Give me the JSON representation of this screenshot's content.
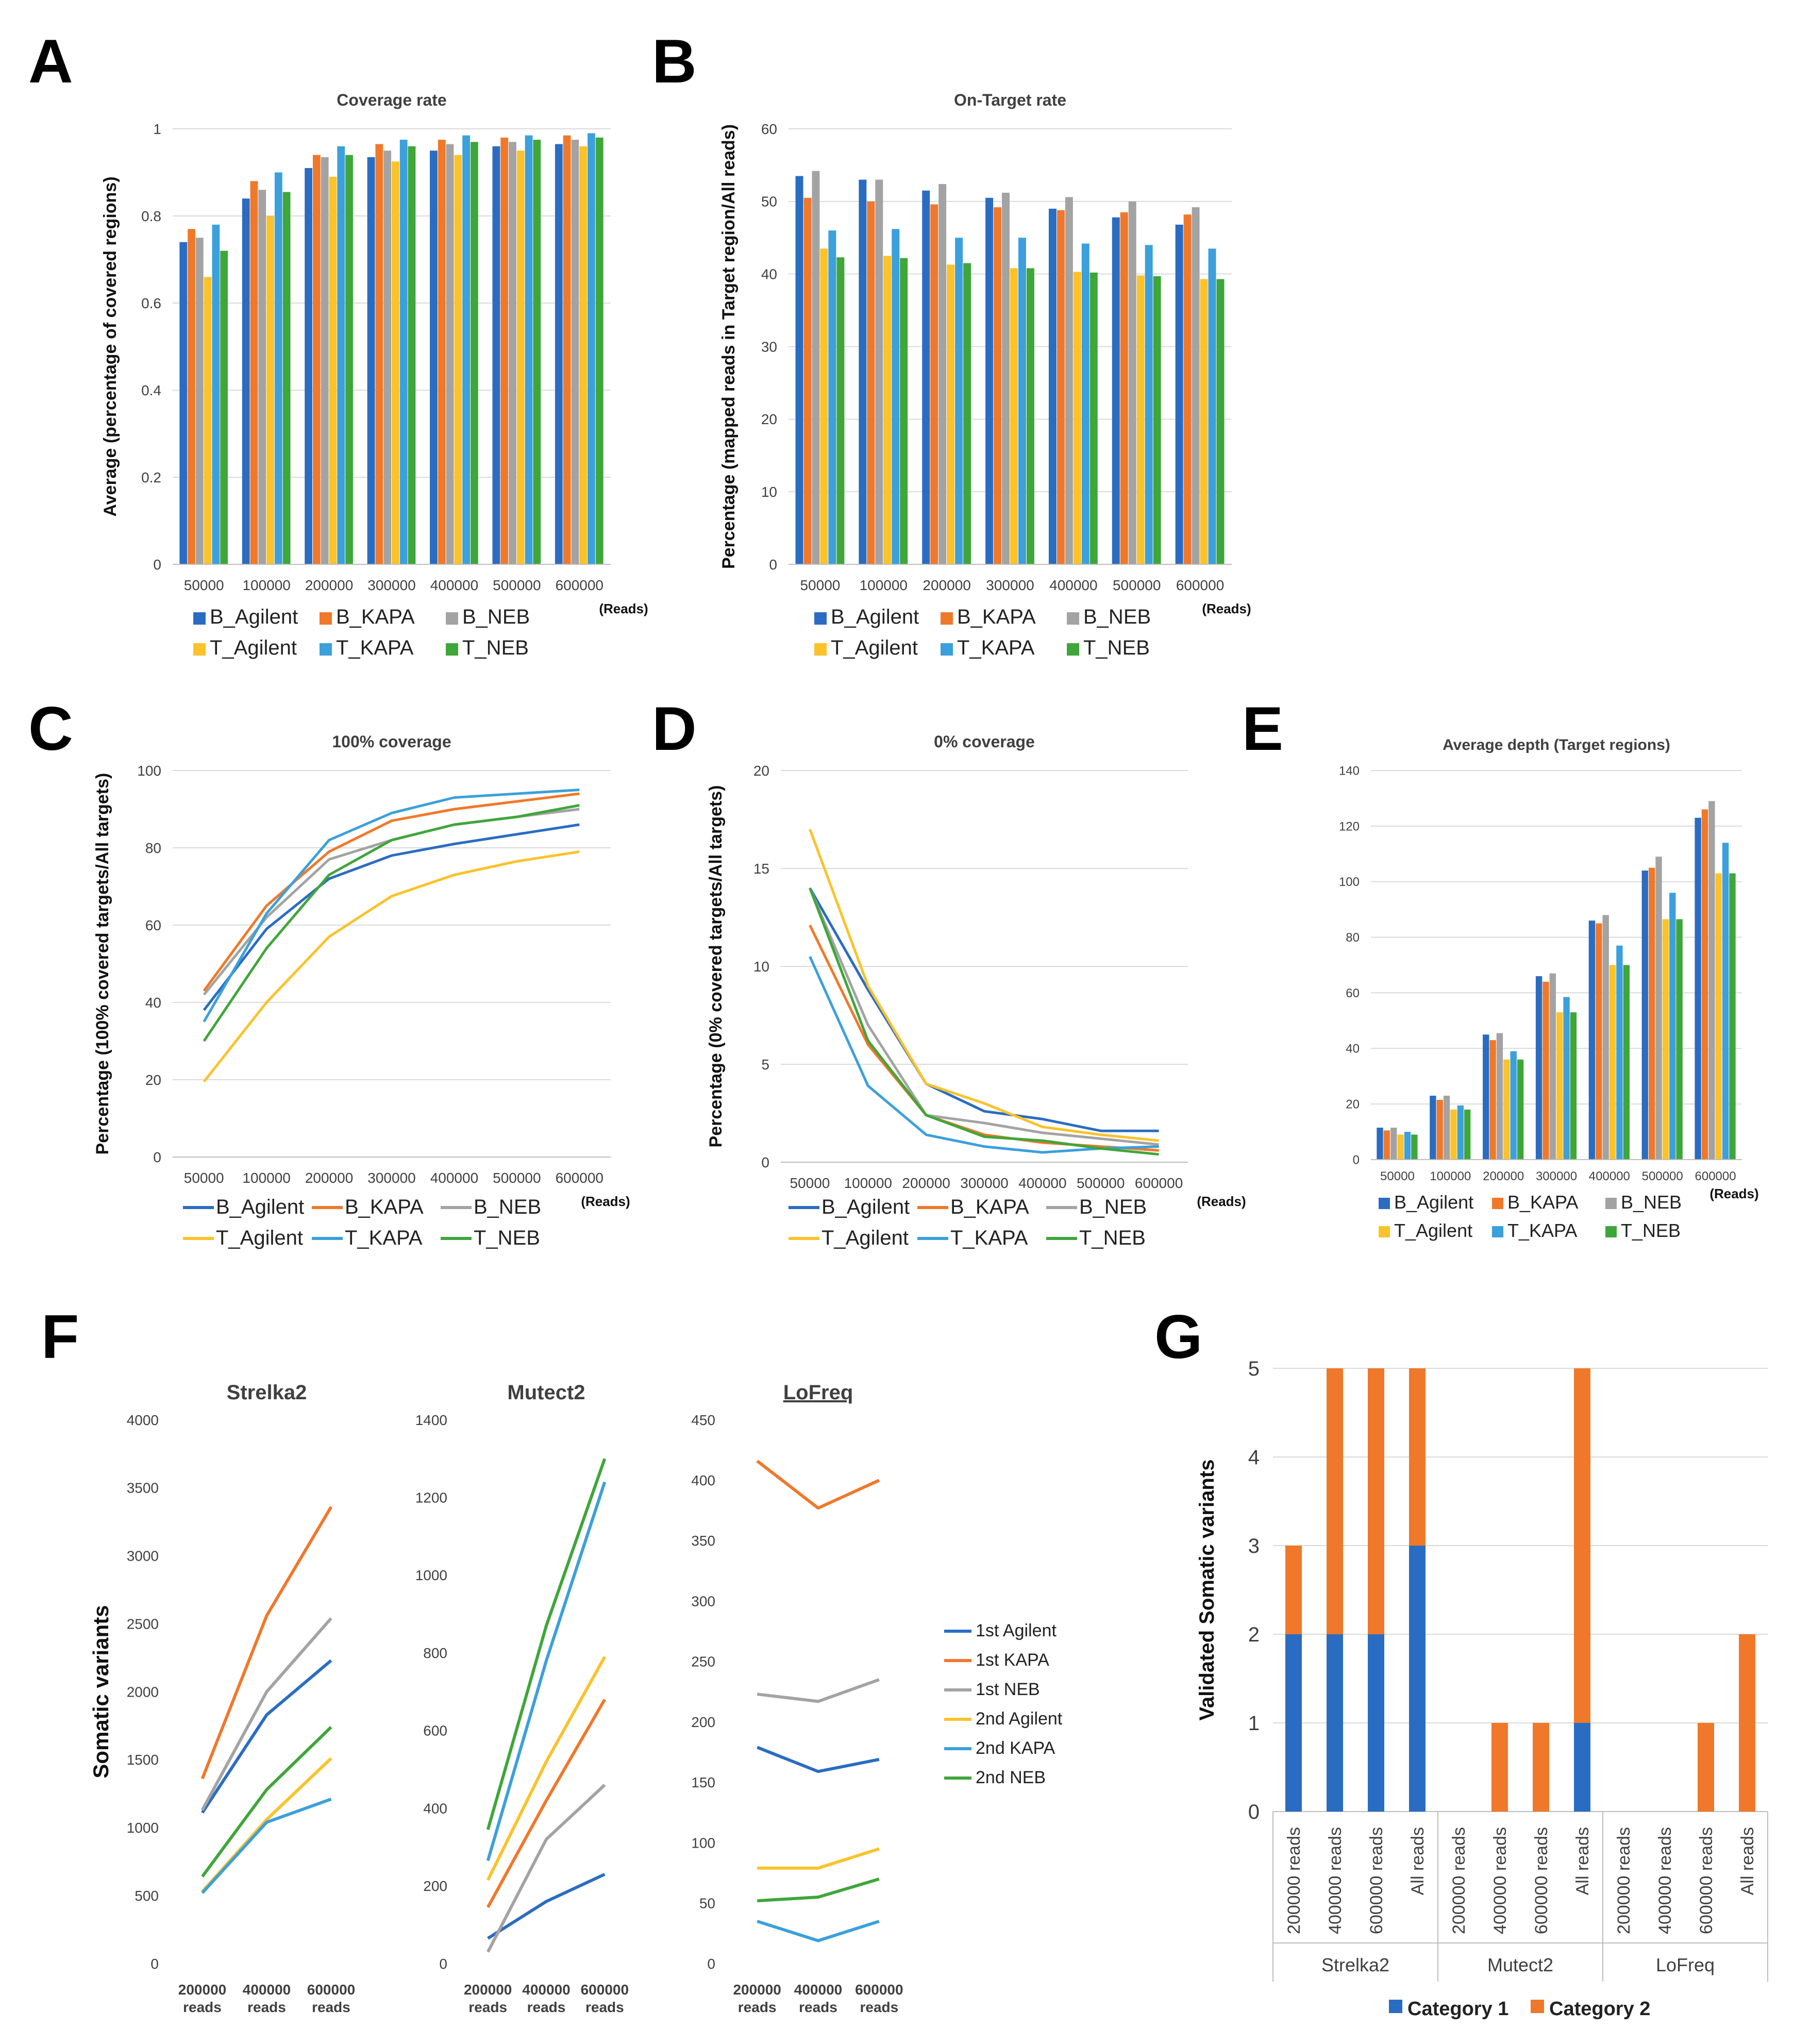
{
  "figure": {
    "panel_letters": [
      "A",
      "B",
      "C",
      "D",
      "E",
      "F",
      "G"
    ]
  },
  "colors": {
    "B_Agilent": "#2A6CC2",
    "B_KAPA": "#F0782A",
    "B_NEB": "#A3A3A3",
    "T_Agilent": "#FBC22A",
    "T_KAPA": "#3BA0DB",
    "T_NEB": "#3FA63A",
    "1st Agilent": "#2A6CC2",
    "1st KAPA": "#F0782A",
    "1st NEB": "#A3A3A3",
    "2nd Agilent": "#FBC22A",
    "2nd KAPA": "#3BA0DB",
    "2nd NEB": "#3FA63A",
    "Category 1": "#2A6CC2",
    "Category 2": "#F0782A",
    "grid": "#DADADA",
    "axis_text": "#404040"
  },
  "chart_data": [
    {
      "id": "A",
      "type": "bar",
      "title": "Coverage rate",
      "ylabel": "Average (percentage of covered regions)",
      "xunit": "(Reads)",
      "categories": [
        "50000",
        "100000",
        "200000",
        "300000",
        "400000",
        "500000",
        "600000"
      ],
      "ylim": [
        0,
        1
      ],
      "yticks": [
        "0",
        "0.2",
        "0.4",
        "0.6",
        "0.8",
        "1"
      ],
      "ytick_values": [
        0,
        0.2,
        0.4,
        0.6,
        0.8,
        1
      ],
      "grid": true,
      "legend": [
        "B_Agilent",
        "B_KAPA",
        "B_NEB",
        "T_Agilent",
        "T_KAPA",
        "T_NEB"
      ],
      "series": [
        {
          "name": "B_Agilent",
          "values": [
            0.74,
            0.84,
            0.91,
            0.935,
            0.95,
            0.96,
            0.965
          ]
        },
        {
          "name": "B_KAPA",
          "values": [
            0.77,
            0.88,
            0.94,
            0.965,
            0.975,
            0.98,
            0.985
          ]
        },
        {
          "name": "B_NEB",
          "values": [
            0.75,
            0.86,
            0.935,
            0.95,
            0.965,
            0.97,
            0.975
          ]
        },
        {
          "name": "T_Agilent",
          "values": [
            0.66,
            0.8,
            0.89,
            0.925,
            0.94,
            0.95,
            0.96
          ]
        },
        {
          "name": "T_KAPA",
          "values": [
            0.78,
            0.9,
            0.96,
            0.975,
            0.985,
            0.985,
            0.99
          ]
        },
        {
          "name": "T_NEB",
          "values": [
            0.72,
            0.855,
            0.94,
            0.96,
            0.97,
            0.975,
            0.98
          ]
        }
      ]
    },
    {
      "id": "B",
      "type": "bar",
      "title": "On-Target rate",
      "ylabel": "Percentage (mapped reads in Target region/All reads)",
      "xunit": "(Reads)",
      "categories": [
        "50000",
        "100000",
        "200000",
        "300000",
        "400000",
        "500000",
        "600000"
      ],
      "ylim": [
        0,
        60
      ],
      "yticks": [
        "0",
        "10",
        "20",
        "30",
        "40",
        "50",
        "60"
      ],
      "ytick_values": [
        0,
        10,
        20,
        30,
        40,
        50,
        60
      ],
      "grid": true,
      "legend": [
        "B_Agilent",
        "B_KAPA",
        "B_NEB",
        "T_Agilent",
        "T_KAPA",
        "T_NEB"
      ],
      "series": [
        {
          "name": "B_Agilent",
          "values": [
            53.5,
            53,
            51.5,
            50.5,
            49,
            47.8,
            46.8
          ]
        },
        {
          "name": "B_KAPA",
          "values": [
            50.5,
            50,
            49.6,
            49.2,
            48.8,
            48.5,
            48.2
          ]
        },
        {
          "name": "B_NEB",
          "values": [
            54.2,
            53,
            52.4,
            51.2,
            50.6,
            50,
            49.2
          ]
        },
        {
          "name": "T_Agilent",
          "values": [
            43.5,
            42.5,
            41.3,
            40.8,
            40.3,
            39.8,
            39.3
          ]
        },
        {
          "name": "T_KAPA",
          "values": [
            46,
            46.2,
            45,
            45,
            44.2,
            44,
            43.5
          ]
        },
        {
          "name": "T_NEB",
          "values": [
            42.3,
            42.2,
            41.5,
            40.8,
            40.2,
            39.7,
            39.3
          ]
        }
      ]
    },
    {
      "id": "C",
      "type": "line",
      "title": "100% coverage",
      "ylabel": "Percentage (100% covered targets/All targets)",
      "xunit": "(Reads)",
      "categories": [
        "50000",
        "100000",
        "200000",
        "300000",
        "400000",
        "500000",
        "600000"
      ],
      "ylim": [
        0,
        100
      ],
      "yticks": [
        "0",
        "20",
        "40",
        "60",
        "80",
        "100"
      ],
      "ytick_values": [
        0,
        20,
        40,
        60,
        80,
        100
      ],
      "grid": true,
      "legend": [
        "B_Agilent",
        "B_KAPA",
        "B_NEB",
        "T_Agilent",
        "T_KAPA",
        "T_NEB"
      ],
      "series": [
        {
          "name": "B_Agilent",
          "values": [
            38,
            59,
            72,
            78,
            81,
            83.5,
            86
          ]
        },
        {
          "name": "B_KAPA",
          "values": [
            43,
            65,
            79,
            87,
            90,
            92,
            94
          ]
        },
        {
          "name": "B_NEB",
          "values": [
            42,
            62,
            77,
            82,
            86,
            88,
            90
          ]
        },
        {
          "name": "T_Agilent",
          "values": [
            19.5,
            40,
            57,
            67.5,
            73,
            76.5,
            79
          ]
        },
        {
          "name": "T_KAPA",
          "values": [
            35,
            63,
            82,
            89,
            93,
            94,
            95
          ]
        },
        {
          "name": "T_NEB",
          "values": [
            30,
            54,
            73,
            82,
            86,
            88,
            91
          ]
        }
      ]
    },
    {
      "id": "D",
      "type": "line",
      "title": "0% coverage",
      "ylabel": "Percentage (0% covered targets/All targets)",
      "xunit": "(Reads)",
      "categories": [
        "50000",
        "100000",
        "200000",
        "300000",
        "400000",
        "500000",
        "600000"
      ],
      "ylim": [
        0,
        20
      ],
      "yticks": [
        "0",
        "5",
        "10",
        "15",
        "20"
      ],
      "ytick_values": [
        0,
        5,
        10,
        15,
        20
      ],
      "grid": true,
      "legend": [
        "B_Agilent",
        "B_KAPA",
        "B_NEB",
        "T_Agilent",
        "T_KAPA",
        "T_NEB"
      ],
      "series": [
        {
          "name": "B_Agilent",
          "values": [
            14,
            8.8,
            4,
            2.6,
            2.2,
            1.6,
            1.6
          ]
        },
        {
          "name": "B_KAPA",
          "values": [
            12.1,
            6,
            2.4,
            1.4,
            1,
            0.8,
            0.6
          ]
        },
        {
          "name": "B_NEB",
          "values": [
            14,
            7,
            2.4,
            2,
            1.5,
            1.2,
            0.9
          ]
        },
        {
          "name": "T_Agilent",
          "values": [
            17,
            9,
            4,
            3,
            1.8,
            1.4,
            1.1
          ]
        },
        {
          "name": "T_KAPA",
          "values": [
            10.5,
            3.9,
            1.4,
            0.8,
            0.5,
            0.7,
            0.8
          ]
        },
        {
          "name": "T_NEB",
          "values": [
            14,
            6.2,
            2.4,
            1.3,
            1.1,
            0.7,
            0.4
          ]
        }
      ]
    },
    {
      "id": "E",
      "type": "bar",
      "title": "Average depth (Target regions)",
      "ylabel": "",
      "xunit": "(Reads)",
      "categories": [
        "50000",
        "100000",
        "200000",
        "300000",
        "400000",
        "500000",
        "600000"
      ],
      "ylim": [
        0,
        140
      ],
      "yticks": [
        "0",
        "20",
        "40",
        "60",
        "80",
        "100",
        "120",
        "140"
      ],
      "ytick_values": [
        0,
        20,
        40,
        60,
        80,
        100,
        120,
        140
      ],
      "grid": true,
      "legend": [
        "B_Agilent",
        "B_KAPA",
        "B_NEB",
        "T_Agilent",
        "T_KAPA",
        "T_NEB"
      ],
      "series": [
        {
          "name": "B_Agilent",
          "values": [
            11.5,
            23,
            45,
            66,
            86,
            104,
            123
          ]
        },
        {
          "name": "B_KAPA",
          "values": [
            10.5,
            21.5,
            43,
            64,
            85,
            105,
            126
          ]
        },
        {
          "name": "B_NEB",
          "values": [
            11.5,
            23,
            45.5,
            67,
            88,
            109,
            129
          ]
        },
        {
          "name": "T_Agilent",
          "values": [
            9,
            18,
            36,
            53,
            70,
            86.5,
            103
          ]
        },
        {
          "name": "T_KAPA",
          "values": [
            10,
            19.5,
            39,
            58.5,
            77,
            96,
            114
          ]
        },
        {
          "name": "T_NEB",
          "values": [
            9,
            18,
            36,
            53,
            70,
            86.5,
            103
          ]
        }
      ]
    },
    {
      "id": "F1",
      "type": "line",
      "title": "Strelka2",
      "ylabel": "Somatic variants",
      "categories": [
        "200000 reads",
        "400000 reads",
        "600000 reads"
      ],
      "ylim": [
        0,
        4000
      ],
      "yticks": [
        "0",
        "500",
        "1000",
        "1500",
        "2000",
        "2500",
        "3000",
        "3500",
        "4000"
      ],
      "ytick_values": [
        0,
        500,
        1000,
        1500,
        2000,
        2500,
        3000,
        3500,
        4000
      ],
      "grid": false,
      "series": [
        {
          "name": "1st Agilent",
          "values": [
            1110,
            1830,
            2230
          ]
        },
        {
          "name": "1st KAPA",
          "values": [
            1360,
            2560,
            3360
          ]
        },
        {
          "name": "1st NEB",
          "values": [
            1130,
            2000,
            2540
          ]
        },
        {
          "name": "2nd Agilent",
          "values": [
            530,
            1060,
            1510
          ]
        },
        {
          "name": "2nd KAPA",
          "values": [
            520,
            1040,
            1210
          ]
        },
        {
          "name": "2nd NEB",
          "values": [
            640,
            1280,
            1740
          ]
        }
      ]
    },
    {
      "id": "F2",
      "type": "line",
      "title": "Mutect2",
      "ylabel": "",
      "categories": [
        "200000 reads",
        "400000 reads",
        "600000 reads"
      ],
      "ylim": [
        0,
        1400
      ],
      "yticks": [
        "0",
        "200",
        "400",
        "600",
        "800",
        "1000",
        "1200",
        "1400"
      ],
      "ytick_values": [
        0,
        200,
        400,
        600,
        800,
        1000,
        1200,
        1400
      ],
      "grid": false,
      "series": [
        {
          "name": "1st Agilent",
          "values": [
            65,
            160,
            230
          ]
        },
        {
          "name": "1st KAPA",
          "values": [
            145,
            420,
            680
          ]
        },
        {
          "name": "1st NEB",
          "values": [
            30,
            320,
            460
          ]
        },
        {
          "name": "2nd Agilent",
          "values": [
            215,
            520,
            790
          ]
        },
        {
          "name": "2nd KAPA",
          "values": [
            265,
            780,
            1240
          ]
        },
        {
          "name": "2nd NEB",
          "values": [
            345,
            870,
            1300
          ]
        }
      ]
    },
    {
      "id": "F3",
      "type": "line",
      "title": "LoFreq",
      "ylabel": "",
      "categories": [
        "200000 reads",
        "400000 reads",
        "600000 reads"
      ],
      "ylim": [
        0,
        450
      ],
      "yticks": [
        "0",
        "50",
        "100",
        "150",
        "200",
        "250",
        "300",
        "350",
        "400",
        "450"
      ],
      "ytick_values": [
        0,
        50,
        100,
        150,
        200,
        250,
        300,
        350,
        400,
        450
      ],
      "grid": false,
      "legend": [
        "1st Agilent",
        "1st KAPA",
        "1st NEB",
        "2nd Agilent",
        "2nd KAPA",
        "2nd NEB"
      ],
      "series": [
        {
          "name": "1st Agilent",
          "values": [
            179,
            159,
            169
          ]
        },
        {
          "name": "1st KAPA",
          "values": [
            416,
            377,
            400
          ]
        },
        {
          "name": "1st NEB",
          "values": [
            223,
            217,
            235
          ]
        },
        {
          "name": "2nd Agilent",
          "values": [
            79,
            79,
            95
          ]
        },
        {
          "name": "2nd KAPA",
          "values": [
            35,
            19,
            35
          ]
        },
        {
          "name": "2nd NEB",
          "values": [
            52,
            55,
            70
          ]
        }
      ]
    },
    {
      "id": "G",
      "type": "bar",
      "stacked": true,
      "title": "",
      "ylabel": "Validated Somatic variants",
      "ylim": [
        0,
        5
      ],
      "yticks": [
        "0",
        "1",
        "2",
        "3",
        "4",
        "5"
      ],
      "ytick_values": [
        0,
        1,
        2,
        3,
        4,
        5
      ],
      "grid": true,
      "groups": [
        "Strelka2",
        "Mutect2",
        "LoFreq"
      ],
      "categories": [
        "200000 reads",
        "400000 reads",
        "600000 reads",
        "All reads"
      ],
      "legend": [
        "Category 1",
        "Category 2"
      ],
      "series": [
        {
          "name": "Category 1",
          "values": [
            [
              2,
              2,
              2,
              3
            ],
            [
              0,
              0,
              0,
              1
            ],
            [
              0,
              0,
              0,
              0
            ]
          ]
        },
        {
          "name": "Category 2",
          "values": [
            [
              1,
              3,
              3,
              2
            ],
            [
              0,
              1,
              1,
              4
            ],
            [
              0,
              0,
              1,
              2
            ]
          ]
        }
      ]
    }
  ]
}
